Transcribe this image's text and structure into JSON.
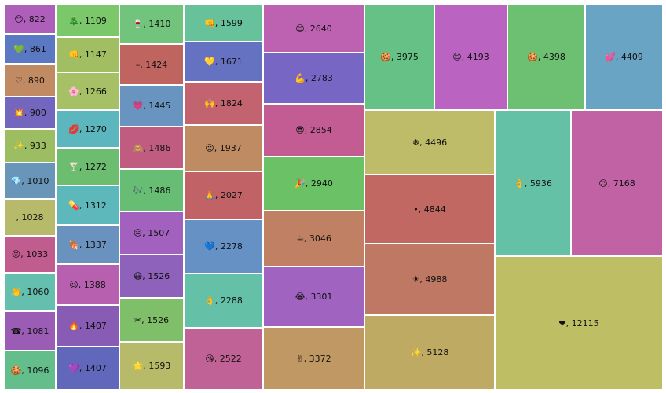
{
  "chart_data": {
    "type": "treemap",
    "title": "",
    "items": [
      {
        "label": "😑, 822",
        "value": 822,
        "color": "#ad5fb9"
      },
      {
        "label": "💚, 861",
        "value": 861,
        "color": "#5b79c3"
      },
      {
        "label": "♡, 890",
        "value": 890,
        "color": "#c08a63"
      },
      {
        "label": "💥, 900",
        "value": 900,
        "color": "#7366bf"
      },
      {
        "label": "✨, 933",
        "value": 933,
        "color": "#9dbd62"
      },
      {
        "label": "💎, 1010",
        "value": 1010,
        "color": "#6996b8"
      },
      {
        "label": ", 1028",
        "value": 1028,
        "color": "#b7ba6a"
      },
      {
        "label": "😛, 1033",
        "value": 1033,
        "color": "#c05c8e"
      },
      {
        "label": "👏, 1060",
        "value": 1060,
        "color": "#64bfae"
      },
      {
        "label": "☎, 1081",
        "value": 1081,
        "color": "#9a5cb4"
      },
      {
        "label": "🍪, 1096",
        "value": 1096,
        "color": "#63be8c"
      },
      {
        "label": "🎄, 1109",
        "value": 1109,
        "color": "#7bc86a"
      },
      {
        "label": "👊, 1147",
        "value": 1147,
        "color": "#a1be62"
      },
      {
        "label": "🌸, 1266",
        "value": 1266,
        "color": "#a5c065"
      },
      {
        "label": "💋, 1270",
        "value": 1270,
        "color": "#5bb7bd"
      },
      {
        "label": "🍸, 1272",
        "value": 1272,
        "color": "#6cbd6f"
      },
      {
        "label": "💊, 1312",
        "value": 1312,
        "color": "#5db8bb"
      },
      {
        "label": "🍖, 1337",
        "value": 1337,
        "color": "#6993be"
      },
      {
        "label": "😉, 1388",
        "value": 1388,
        "color": "#b760b0"
      },
      {
        "label": "🔥, 1407",
        "value": 1407,
        "color": "#885bb4"
      },
      {
        "label": "💜, 1407",
        "value": 1407,
        "color": "#6168bb"
      },
      {
        "label": "🍷, 1410",
        "value": 1410,
        "color": "#72c47c"
      },
      {
        "label": "–, 1424",
        "value": 1424,
        "color": "#c0645f"
      },
      {
        "label": "💗, 1445",
        "value": 1445,
        "color": "#6a94c0"
      },
      {
        "label": "🙈, 1486",
        "value": 1486,
        "color": "#c05c80"
      },
      {
        "label": "🎶, 1486",
        "value": 1486,
        "color": "#66bd73"
      },
      {
        "label": "😑, 1507",
        "value": 1507,
        "color": "#a361bf"
      },
      {
        "label": "😷, 1526",
        "value": 1526,
        "color": "#8e61bb"
      },
      {
        "label": "✂, 1526",
        "value": 1526,
        "color": "#80bf69"
      },
      {
        "label": "🌟, 1593",
        "value": 1593,
        "color": "#b7ba68"
      },
      {
        "label": "👊, 1599",
        "value": 1599,
        "color": "#67c19b"
      },
      {
        "label": "💛, 1671",
        "value": 1671,
        "color": "#6571c1"
      },
      {
        "label": "🙌, 1824",
        "value": 1824,
        "color": "#c2636f"
      },
      {
        "label": "☺, 1937",
        "value": 1937,
        "color": "#bf8b63"
      },
      {
        "label": "🙏, 2027",
        "value": 2027,
        "color": "#c16366"
      },
      {
        "label": "💙, 2278",
        "value": 2278,
        "color": "#6691c5"
      },
      {
        "label": "👌, 2288",
        "value": 2288,
        "color": "#64c0a6"
      },
      {
        "label": "😘, 2522",
        "value": 2522,
        "color": "#c06296"
      },
      {
        "label": "😊, 2640",
        "value": 2640,
        "color": "#bd62b0"
      },
      {
        "label": "💪, 2783",
        "value": 2783,
        "color": "#7766c3"
      },
      {
        "label": "😎, 2854",
        "value": 2854,
        "color": "#c35c93"
      },
      {
        "label": "🎉, 2940",
        "value": 2940,
        "color": "#6ac166"
      },
      {
        "label": "☕, 3046",
        "value": 3046,
        "color": "#c08063"
      },
      {
        "label": "😂, 3301",
        "value": 3301,
        "color": "#a063c0"
      },
      {
        "label": "✌, 3372",
        "value": 3372,
        "color": "#c09863"
      },
      {
        "label": "🍪, 3975",
        "value": 3975,
        "color": "#66c186"
      },
      {
        "label": "😊, 4193",
        "value": 4193,
        "color": "#bb63c1"
      },
      {
        "label": "🍪, 4398",
        "value": 4398,
        "color": "#6dbf72"
      },
      {
        "label": "💕, 4409",
        "value": 4409,
        "color": "#69a4c4"
      },
      {
        "label": "❄, 4496",
        "value": 4496,
        "color": "#bebc68"
      },
      {
        "label": "•, 4844",
        "value": 4844,
        "color": "#c16863"
      },
      {
        "label": "☀, 4988",
        "value": 4988,
        "color": "#bf7863"
      },
      {
        "label": "✨, 5128",
        "value": 5128,
        "color": "#bfaa63"
      },
      {
        "label": "👌, 5936",
        "value": 5936,
        "color": "#64c1a6"
      },
      {
        "label": "😍, 7168",
        "value": 7168,
        "color": "#c062a3"
      },
      {
        "label": "❤, 12115",
        "value": 12115,
        "color": "#bebe65"
      }
    ]
  }
}
